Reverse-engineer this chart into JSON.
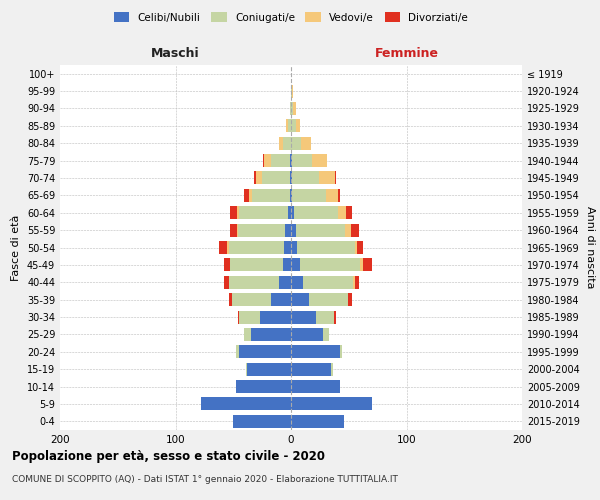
{
  "age_groups": [
    "0-4",
    "5-9",
    "10-14",
    "15-19",
    "20-24",
    "25-29",
    "30-34",
    "35-39",
    "40-44",
    "45-49",
    "50-54",
    "55-59",
    "60-64",
    "65-69",
    "70-74",
    "75-79",
    "80-84",
    "85-89",
    "90-94",
    "95-99",
    "100+"
  ],
  "birth_years": [
    "2015-2019",
    "2010-2014",
    "2005-2009",
    "2000-2004",
    "1995-1999",
    "1990-1994",
    "1985-1989",
    "1980-1984",
    "1975-1979",
    "1970-1974",
    "1965-1969",
    "1960-1964",
    "1955-1959",
    "1950-1954",
    "1945-1949",
    "1940-1944",
    "1935-1939",
    "1930-1934",
    "1925-1929",
    "1920-1924",
    "≤ 1919"
  ],
  "male": {
    "celibi": [
      50,
      78,
      48,
      38,
      45,
      35,
      27,
      17,
      10,
      7,
      6,
      5,
      3,
      1,
      1,
      1,
      0,
      0,
      0,
      0,
      0
    ],
    "coniugati": [
      0,
      0,
      0,
      1,
      3,
      6,
      18,
      34,
      44,
      46,
      48,
      41,
      42,
      33,
      24,
      16,
      7,
      3,
      1,
      0,
      0
    ],
    "vedovi": [
      0,
      0,
      0,
      0,
      0,
      0,
      0,
      0,
      0,
      0,
      1,
      1,
      2,
      2,
      5,
      6,
      3,
      1,
      0,
      0,
      0
    ],
    "divorziati": [
      0,
      0,
      0,
      0,
      0,
      0,
      1,
      3,
      4,
      5,
      7,
      6,
      6,
      5,
      2,
      1,
      0,
      0,
      0,
      0,
      0
    ]
  },
  "female": {
    "nubili": [
      46,
      70,
      42,
      35,
      42,
      28,
      22,
      16,
      10,
      8,
      5,
      4,
      3,
      1,
      1,
      1,
      0,
      0,
      0,
      0,
      0
    ],
    "coniugate": [
      0,
      0,
      0,
      1,
      2,
      5,
      15,
      33,
      44,
      52,
      50,
      43,
      38,
      29,
      23,
      17,
      9,
      4,
      2,
      1,
      0
    ],
    "vedove": [
      0,
      0,
      0,
      0,
      0,
      0,
      0,
      0,
      1,
      2,
      2,
      5,
      7,
      11,
      14,
      13,
      8,
      4,
      2,
      1,
      0
    ],
    "divorziate": [
      0,
      0,
      0,
      0,
      0,
      0,
      2,
      4,
      4,
      8,
      5,
      7,
      5,
      1,
      1,
      0,
      0,
      0,
      0,
      0,
      0
    ]
  },
  "colors": {
    "celibi": "#4472c4",
    "coniugati": "#c5d5a3",
    "vedovi": "#f5c87a",
    "divorziati": "#e03020"
  },
  "title": "Popolazione per età, sesso e stato civile - 2020",
  "subtitle": "COMUNE DI SCOPPITO (AQ) - Dati ISTAT 1° gennaio 2020 - Elaborazione TUTTITALIA.IT",
  "xlabel_left": "Maschi",
  "xlabel_right": "Femmine",
  "ylabel_left": "Fasce di età",
  "ylabel_right": "Anni di nascita",
  "xlim": 200,
  "legend_labels": [
    "Celibi/Nubili",
    "Coniugati/e",
    "Vedovi/e",
    "Divorziati/e"
  ],
  "bg_color": "#f0f0f0",
  "plot_bg": "#ffffff",
  "grid_color": "#bbbbbb"
}
